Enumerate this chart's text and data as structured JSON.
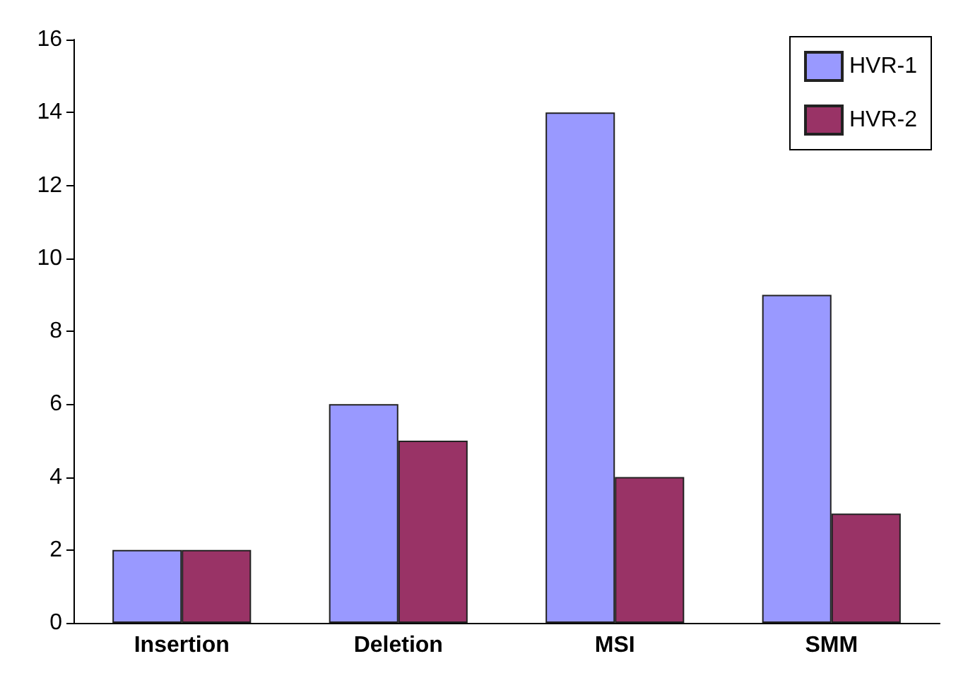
{
  "chart_data": {
    "type": "bar",
    "categories": [
      "Insertion",
      "Deletion",
      "MSI",
      "SMM"
    ],
    "series": [
      {
        "name": "HVR-1",
        "color": "#9999ff",
        "values": [
          2,
          6,
          14,
          9
        ]
      },
      {
        "name": "HVR-2",
        "color": "#993366",
        "values": [
          2,
          5,
          4,
          3
        ]
      }
    ],
    "ylim": [
      0,
      16
    ],
    "yticks": [
      0,
      2,
      4,
      6,
      8,
      10,
      12,
      14,
      16
    ],
    "grid": false,
    "legend": "top right"
  }
}
